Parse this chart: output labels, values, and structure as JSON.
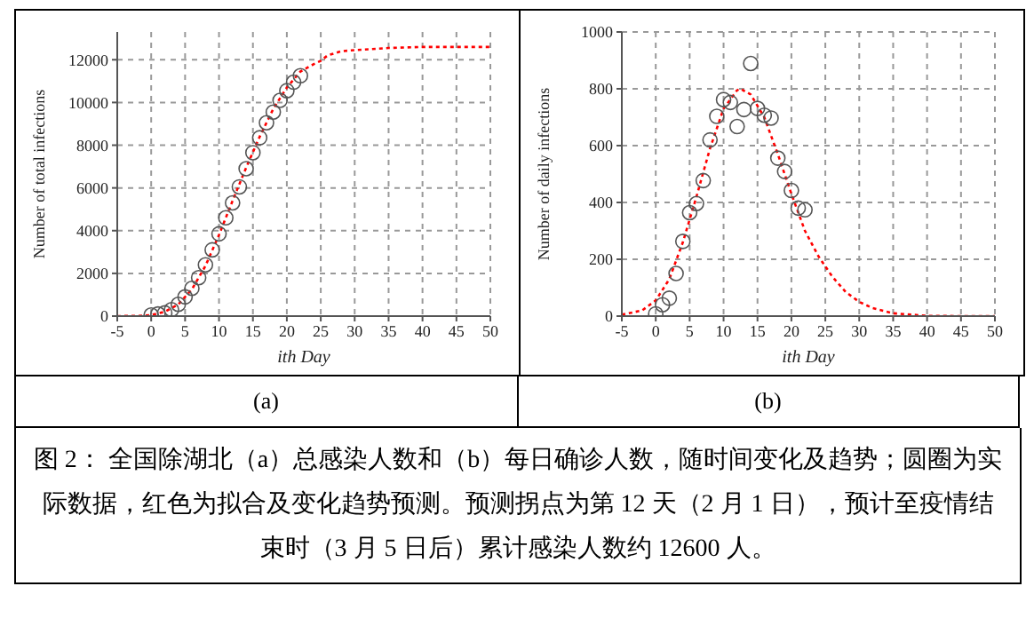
{
  "chart_data": [
    {
      "type": "scatter",
      "xlabel": "ith Day",
      "ylabel": "Number of total infections",
      "xlim": [
        -5,
        50
      ],
      "xticks": [
        -5,
        0,
        5,
        10,
        15,
        20,
        25,
        30,
        35,
        40,
        45,
        50
      ],
      "ylim": [
        0,
        13300
      ],
      "yticks": [
        0,
        2000,
        4000,
        6000,
        8000,
        10000,
        12000
      ],
      "grid": true,
      "annotations": [
        "(a)"
      ],
      "series": [
        {
          "color": "#555555",
          "marker": "circle",
          "x": [
            0,
            1,
            2,
            3,
            4,
            5,
            6,
            7,
            8,
            9,
            10,
            11,
            12,
            13,
            14,
            15,
            16,
            17,
            18,
            19,
            20,
            21,
            22
          ],
          "values": [
            50,
            100,
            150,
            300,
            550,
            900,
            1300,
            1800,
            2400,
            3100,
            3850,
            4600,
            5300,
            6050,
            6900,
            7650,
            8350,
            9050,
            9550,
            10100,
            10550,
            10950,
            11250
          ]
        },
        {
          "type": "line",
          "color": "#ff0000",
          "marker": "none",
          "line_style": "dotted",
          "x": [
            -5,
            -2,
            0,
            2,
            4,
            6,
            8,
            10,
            12,
            14,
            16,
            18,
            20,
            22,
            24,
            25,
            26,
            28,
            30,
            35,
            40,
            45,
            50
          ],
          "values": [
            0,
            10,
            50,
            200,
            550,
            1250,
            2350,
            3800,
            5400,
            6950,
            8400,
            9700,
            10700,
            11450,
            11800,
            11950,
            12200,
            12400,
            12450,
            12550,
            12600,
            12600,
            12600
          ]
        }
      ]
    },
    {
      "type": "scatter",
      "xlabel": "ith Day",
      "ylabel": "Number of daily infections",
      "xlim": [
        -5,
        50
      ],
      "xticks": [
        -5,
        0,
        5,
        10,
        15,
        20,
        25,
        30,
        35,
        40,
        45,
        50
      ],
      "ylim": [
        0,
        1000
      ],
      "yticks": [
        0,
        200,
        400,
        600,
        800,
        1000
      ],
      "grid": true,
      "annotations": [
        "(b)",
        "图 2： 全国除湖北（a）总感染人数和（b）每日确诊人数，随时间变化及趋势；圆圈为实际数据，红色为拟合及变化趋势预测。预测拐点为第 12 天（2 月 1 日），预计至疫情结束时（3 月 5 日后）累计感染人数约 12600 人。"
      ],
      "series": [
        {
          "color": "#555555",
          "marker": "circle",
          "x": [
            0,
            1,
            2,
            3,
            4,
            5,
            6,
            7,
            8,
            9,
            10,
            11,
            12,
            13,
            14,
            15,
            16,
            17,
            18,
            19,
            20,
            21,
            22
          ],
          "values": [
            8,
            40,
            63,
            150,
            263,
            364,
            396,
            477,
            620,
            703,
            762,
            752,
            667,
            727,
            889,
            731,
            707,
            697,
            556,
            509,
            442,
            380,
            374
          ]
        },
        {
          "type": "line",
          "color": "#ff0000",
          "marker": "none",
          "line_style": "dotted",
          "x": [
            -5,
            -2,
            0,
            2,
            4,
            6,
            8,
            10,
            12,
            12.5,
            14,
            16,
            18,
            20,
            22,
            24,
            26,
            28,
            30,
            32,
            35,
            40,
            45,
            50
          ],
          "values": [
            5,
            20,
            55,
            130,
            260,
            420,
            590,
            730,
            795,
            800,
            780,
            700,
            570,
            430,
            300,
            210,
            140,
            85,
            50,
            28,
            10,
            1,
            0,
            0
          ]
        }
      ]
    }
  ]
}
